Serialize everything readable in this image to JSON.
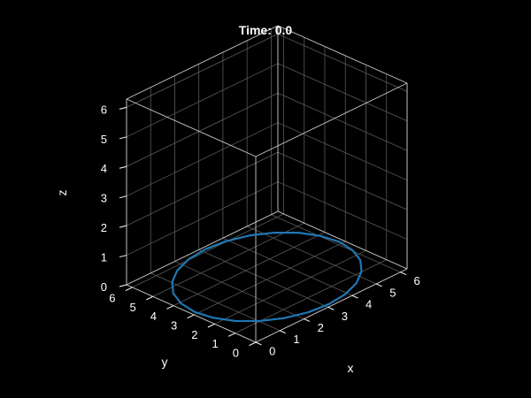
{
  "chart_data": {
    "type": "line",
    "projection": "3d",
    "title": "Time: 0.0",
    "xlabel": "x",
    "ylabel": "y",
    "zlabel": "z",
    "xlim": [
      0,
      6.28
    ],
    "ylim": [
      0,
      6.28
    ],
    "zlim": [
      0,
      6.28
    ],
    "xticks": [
      "0",
      "1",
      "2",
      "3",
      "4",
      "5",
      "6"
    ],
    "yticks": [
      "0",
      "1",
      "2",
      "3",
      "4",
      "5",
      "6"
    ],
    "zticks": [
      "0",
      "1",
      "2",
      "3",
      "4",
      "5",
      "6"
    ],
    "grid": true,
    "series": [
      {
        "color": "#1f77b4",
        "shape": "circle",
        "center": [
          3.14,
          3.14,
          0
        ],
        "radius": 3.0,
        "x": [
          6.14,
          6.03,
          5.74,
          5.26,
          4.64,
          3.91,
          3.14,
          2.37,
          1.64,
          1.02,
          0.54,
          0.25,
          0.14,
          0.25,
          0.54,
          1.02,
          1.64,
          2.37,
          3.14,
          3.91,
          4.64,
          5.26,
          5.74,
          6.03,
          6.14
        ],
        "y": [
          3.14,
          3.92,
          4.64,
          5.26,
          5.74,
          6.04,
          6.14,
          6.04,
          5.74,
          5.26,
          4.64,
          3.92,
          3.14,
          2.36,
          1.64,
          1.02,
          0.54,
          0.24,
          0.14,
          0.24,
          0.54,
          1.02,
          1.64,
          2.36,
          3.14
        ],
        "z": [
          0,
          0,
          0,
          0,
          0,
          0,
          0,
          0,
          0,
          0,
          0,
          0,
          0,
          0,
          0,
          0,
          0,
          0,
          0,
          0,
          0,
          0,
          0,
          0,
          0
        ]
      }
    ]
  },
  "colors": {
    "background": "#000000",
    "box_edge": "#cccccc",
    "grid": "#5a5a5a",
    "text": "#ffffff"
  }
}
